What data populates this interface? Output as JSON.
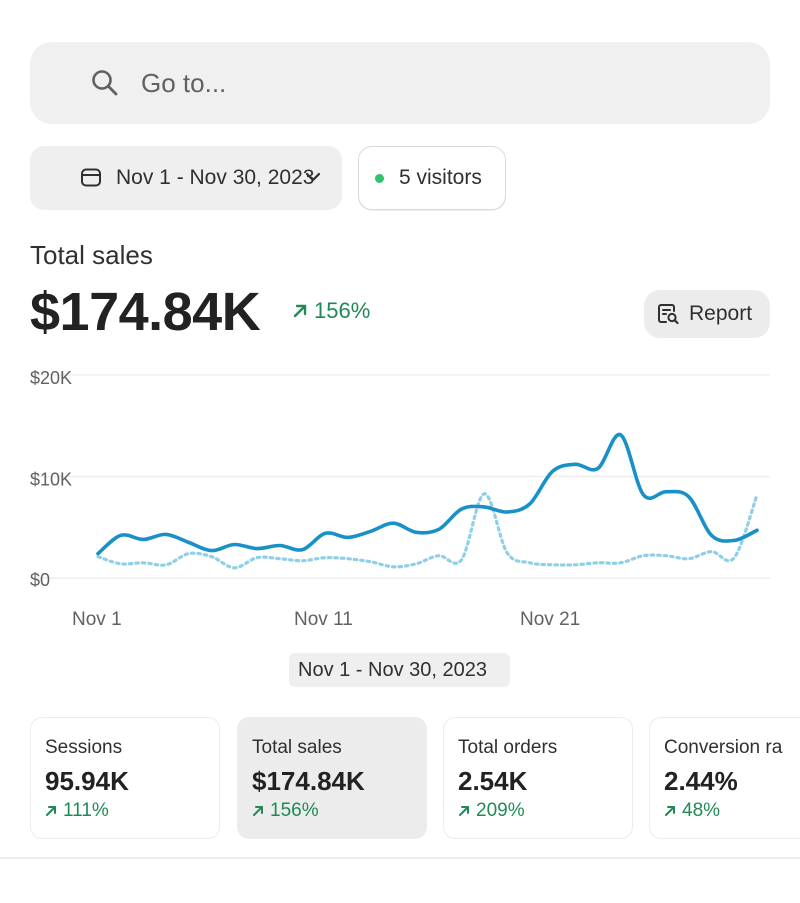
{
  "search": {
    "placeholder": "Go to..."
  },
  "date_range": {
    "label": "Nov 1 - Nov 30, 2023"
  },
  "visitors": {
    "label": "5 visitors",
    "dot_color": "#2fc46a"
  },
  "total_sales": {
    "title": "Total sales",
    "value": "$174.84K",
    "delta": "156%"
  },
  "report_button": {
    "label": "Report"
  },
  "range_chip": {
    "label": "Nov 1 - Nov 30, 2023"
  },
  "colors": {
    "accent": "#1991c8",
    "comparison": "#8fd0e6",
    "positive": "#1f8a55"
  },
  "chart_data": {
    "type": "line",
    "y_ticks": [
      "$20K",
      "$10K",
      "$0"
    ],
    "ylim": [
      0,
      20000
    ],
    "x_ticks": [
      "Nov 1",
      "Nov 11",
      "Nov 21"
    ],
    "grid": true,
    "series": [
      {
        "style": "solid",
        "values": [
          2400,
          4200,
          3800,
          4300,
          3500,
          2700,
          3300,
          2900,
          3200,
          2800,
          4400,
          4000,
          4600,
          5400,
          4500,
          4800,
          6800,
          7000,
          6500,
          7300,
          10500,
          11200,
          10800,
          14100,
          8200,
          8500,
          8000,
          4200,
          3700,
          4700
        ]
      },
      {
        "style": "dotted",
        "values": [
          2100,
          1400,
          1500,
          1300,
          2400,
          2100,
          1000,
          2000,
          1900,
          1700,
          2000,
          1900,
          1600,
          1100,
          1400,
          2200,
          1800,
          8300,
          2500,
          1500,
          1300,
          1300,
          1500,
          1500,
          2200,
          2200,
          1900,
          2600,
          2000,
          8200
        ]
      }
    ]
  },
  "metrics": [
    {
      "name": "Sessions",
      "value": "95.94K",
      "delta": "111%"
    },
    {
      "name": "Total sales",
      "value": "$174.84K",
      "delta": "156%"
    },
    {
      "name": "Total orders",
      "value": "2.54K",
      "delta": "209%"
    },
    {
      "name": "Conversion ra",
      "value": "2.44%",
      "delta": "48%"
    }
  ]
}
